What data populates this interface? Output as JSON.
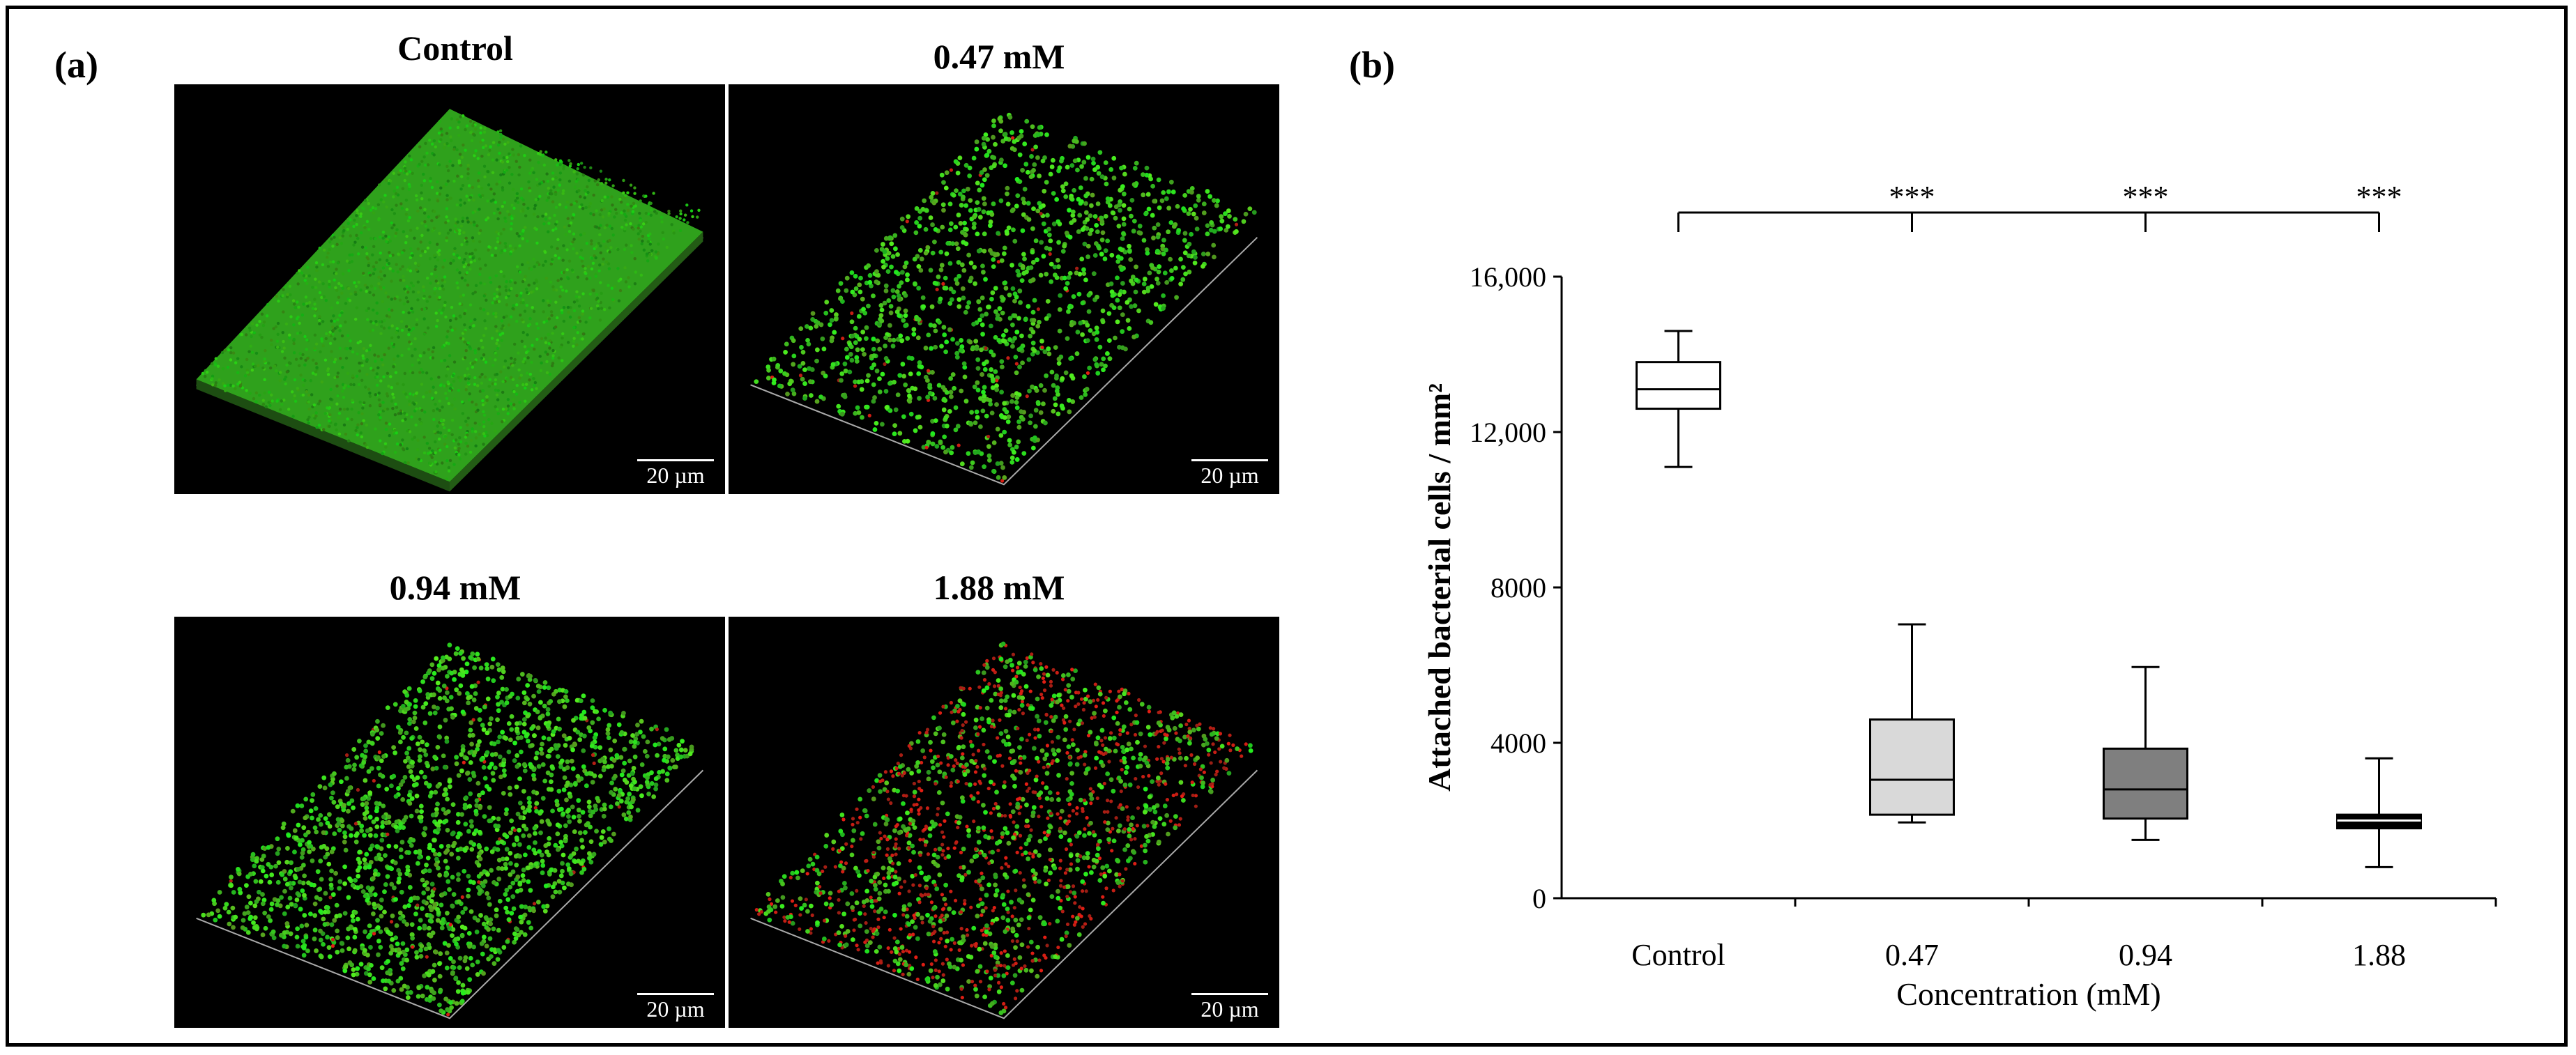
{
  "panel_a": {
    "label": "(a)",
    "images": [
      {
        "title": "Control",
        "scale": "20 µm"
      },
      {
        "title": "0.47 mM",
        "scale": "20 µm"
      },
      {
        "title": "0.94 mM",
        "scale": "20 µm"
      },
      {
        "title": "1.88 mM",
        "scale": "20 µm"
      }
    ]
  },
  "panel_b": {
    "label": "(b)"
  },
  "chart_data": {
    "type": "box",
    "categories": [
      "Control",
      "0.47",
      "0.94",
      "1.88"
    ],
    "xlabel": "Concentration (mM)",
    "ylabel": "Attached bacterial cells / mm²",
    "ylim": [
      0,
      16000
    ],
    "yticks": [
      0,
      4000,
      8000,
      12000,
      16000
    ],
    "ytick_labels": [
      "0",
      "4000",
      "8000",
      "12,000",
      "16,000"
    ],
    "boxes": [
      {
        "category": "Control",
        "min": 11100,
        "q1": 12600,
        "median": 13100,
        "q3": 13800,
        "max": 14600,
        "fill": "#ffffff"
      },
      {
        "category": "0.47",
        "min": 1950,
        "q1": 2150,
        "median": 3050,
        "q3": 4600,
        "max": 7050,
        "fill": "#d9d9d9"
      },
      {
        "category": "0.94",
        "min": 1500,
        "q1": 2050,
        "median": 2800,
        "q3": 3850,
        "max": 5950,
        "fill": "#7f7f7f"
      },
      {
        "category": "1.88",
        "min": 800,
        "q1": 1800,
        "median": 2000,
        "q3": 2150,
        "max": 3600,
        "fill": "#000000"
      }
    ],
    "significance": {
      "reference": "Control",
      "marks": [
        {
          "category": "0.47",
          "label": "***"
        },
        {
          "category": "0.94",
          "label": "***"
        },
        {
          "category": "1.88",
          "label": "***"
        }
      ]
    }
  }
}
